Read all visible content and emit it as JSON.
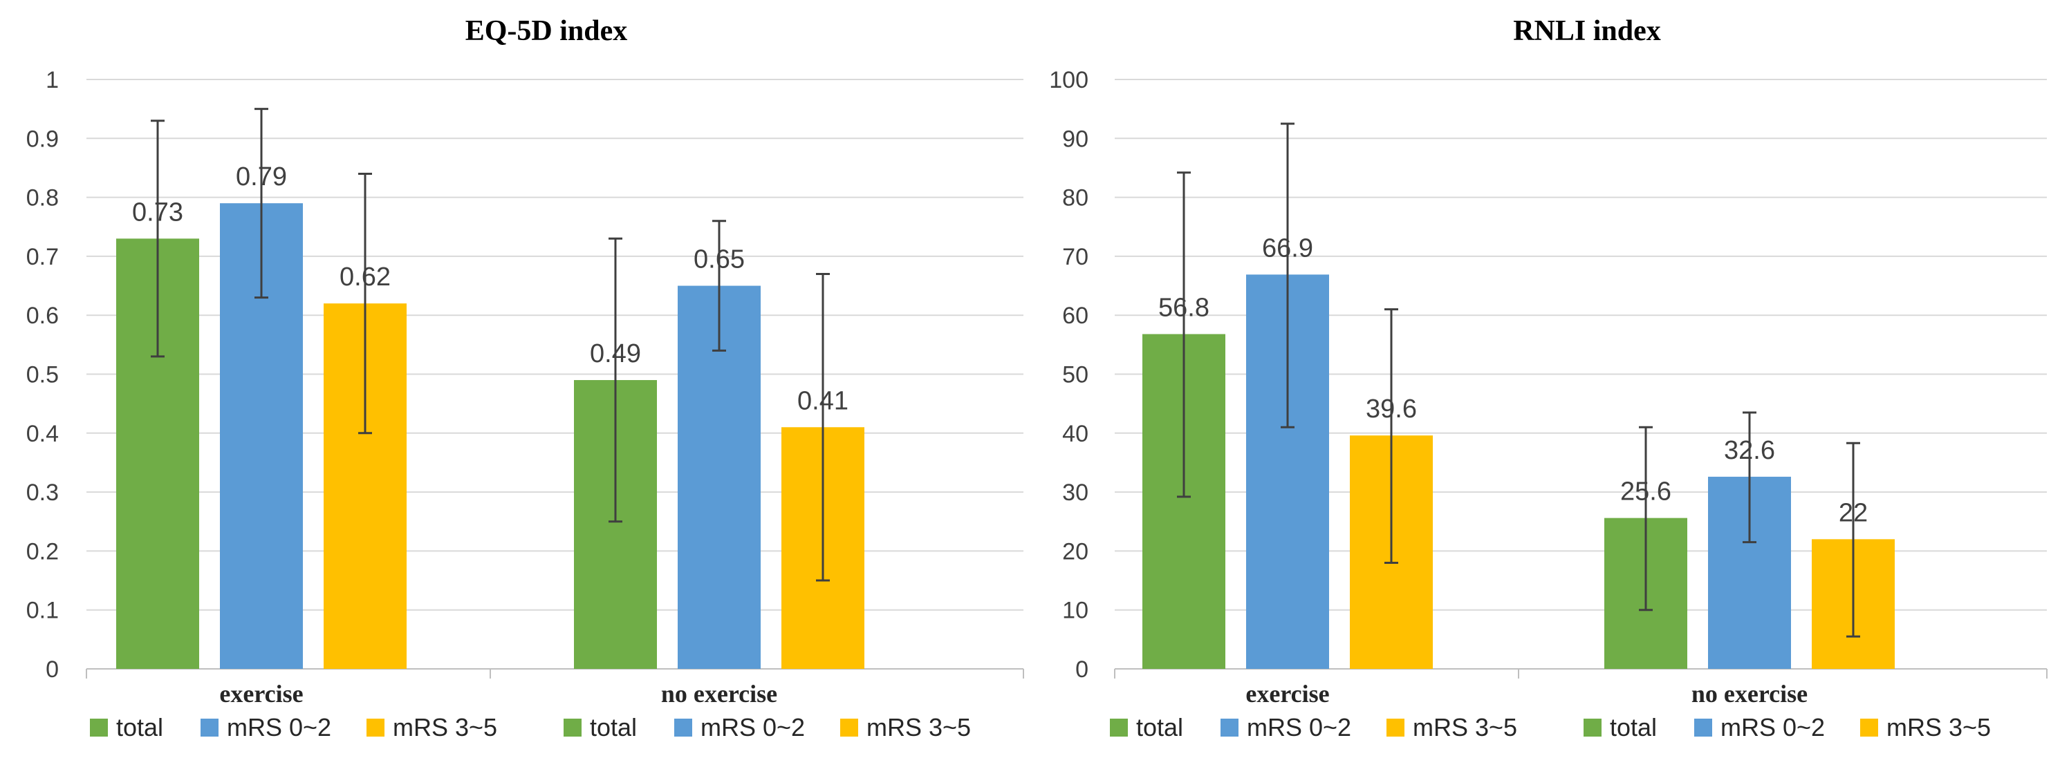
{
  "colors": {
    "total": "#70ad47",
    "mrs_0_2": "#5b9bd5",
    "mrs_3_5": "#ffc000"
  },
  "chart_data": [
    {
      "type": "bar",
      "title": "EQ-5D index",
      "xlabel": "",
      "ylabel": "",
      "ylim": [
        0,
        1
      ],
      "yticks": [
        "0",
        "0.1",
        "0.2",
        "0.3",
        "0.4",
        "0.5",
        "0.6",
        "0.7",
        "0.8",
        "0.9",
        "1"
      ],
      "ytick_values": [
        0,
        0.1,
        0.2,
        0.3,
        0.4,
        0.5,
        0.6,
        0.7,
        0.8,
        0.9,
        1
      ],
      "grid": true,
      "legend_position": "bottom",
      "categories": [
        "exercise",
        "no exercise"
      ],
      "series": [
        {
          "name": "total",
          "color": "#70ad47",
          "values": [
            0.73,
            0.49
          ],
          "labels": [
            "0.73",
            "0.49"
          ],
          "err_low": [
            0.53,
            0.25
          ],
          "err_high": [
            0.93,
            0.73
          ]
        },
        {
          "name": "mRS 0~2",
          "color": "#5b9bd5",
          "values": [
            0.79,
            0.65
          ],
          "labels": [
            "0.79",
            "0.65"
          ],
          "err_low": [
            0.63,
            0.54
          ],
          "err_high": [
            0.95,
            0.76
          ]
        },
        {
          "name": "mRS 3~5",
          "color": "#ffc000",
          "values": [
            0.62,
            0.41
          ],
          "labels": [
            "0.62",
            "0.41"
          ],
          "err_low": [
            0.4,
            0.15
          ],
          "err_high": [
            0.84,
            0.67
          ]
        }
      ]
    },
    {
      "type": "bar",
      "title": "RNLI index",
      "xlabel": "",
      "ylabel": "",
      "ylim": [
        0,
        100
      ],
      "yticks": [
        "0",
        "10",
        "20",
        "30",
        "40",
        "50",
        "60",
        "70",
        "80",
        "90",
        "100"
      ],
      "ytick_values": [
        0,
        10,
        20,
        30,
        40,
        50,
        60,
        70,
        80,
        90,
        100
      ],
      "grid": true,
      "legend_position": "bottom",
      "categories": [
        "exercise",
        "no exercise"
      ],
      "series": [
        {
          "name": "total",
          "color": "#70ad47",
          "values": [
            56.8,
            25.6
          ],
          "labels": [
            "56.8",
            "25.6"
          ],
          "err_low": [
            29.2,
            10.0
          ],
          "err_high": [
            84.2,
            41.0
          ]
        },
        {
          "name": "mRS 0~2",
          "color": "#5b9bd5",
          "values": [
            66.9,
            32.6
          ],
          "labels": [
            "66.9",
            "32.6"
          ],
          "err_low": [
            41.0,
            21.5
          ],
          "err_high": [
            92.5,
            43.5
          ]
        },
        {
          "name": "mRS 3~5",
          "color": "#ffc000",
          "values": [
            39.6,
            22
          ],
          "labels": [
            "39.6",
            "22"
          ],
          "err_low": [
            18.0,
            5.5
          ],
          "err_high": [
            61.0,
            38.3
          ]
        }
      ]
    }
  ]
}
